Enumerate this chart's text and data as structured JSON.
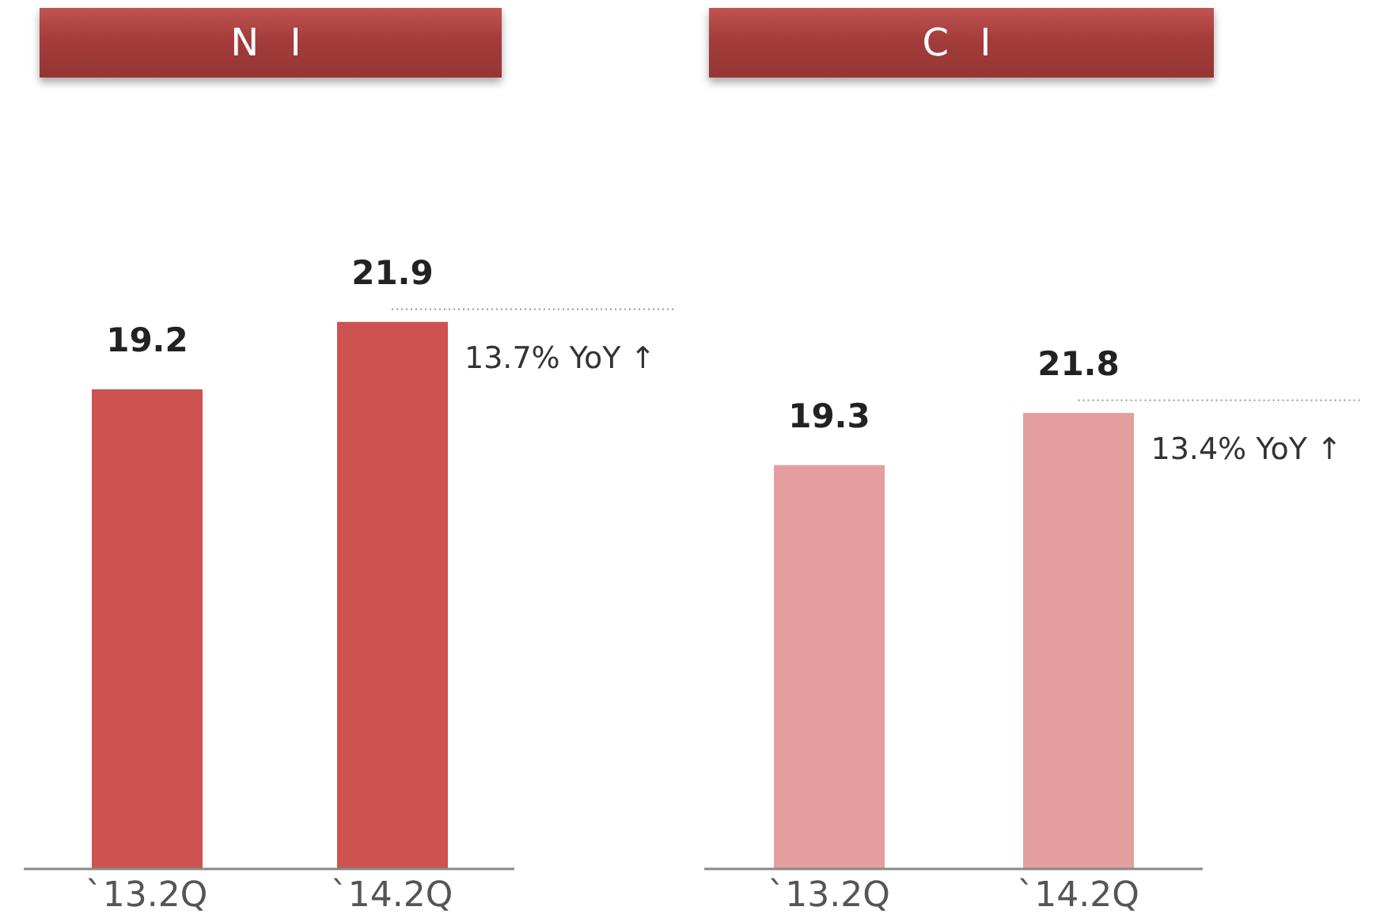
{
  "chart_data": [
    {
      "type": "bar",
      "title": "N I",
      "categories": [
        "`13.2Q",
        "`14.2Q"
      ],
      "values": [
        19.2,
        21.9
      ],
      "color": "#cd5351",
      "tick_labels": "x",
      "data_labels": true,
      "grid": false,
      "legend": false,
      "annotations": [
        {
          "text": "13.7% YoY ↑",
          "x": "`14.2Q",
          "y": 21.9
        }
      ]
    },
    {
      "type": "bar",
      "title": "C I",
      "categories": [
        "`13.2Q",
        "`14.2Q"
      ],
      "values": [
        19.3,
        21.8
      ],
      "color": "#e49e9e",
      "tick_labels": "x",
      "data_labels": true,
      "grid": false,
      "legend": false,
      "annotations": [
        {
          "text": "13.4% YoY ↑",
          "x": "`14.2Q",
          "y": 21.8
        }
      ]
    }
  ]
}
